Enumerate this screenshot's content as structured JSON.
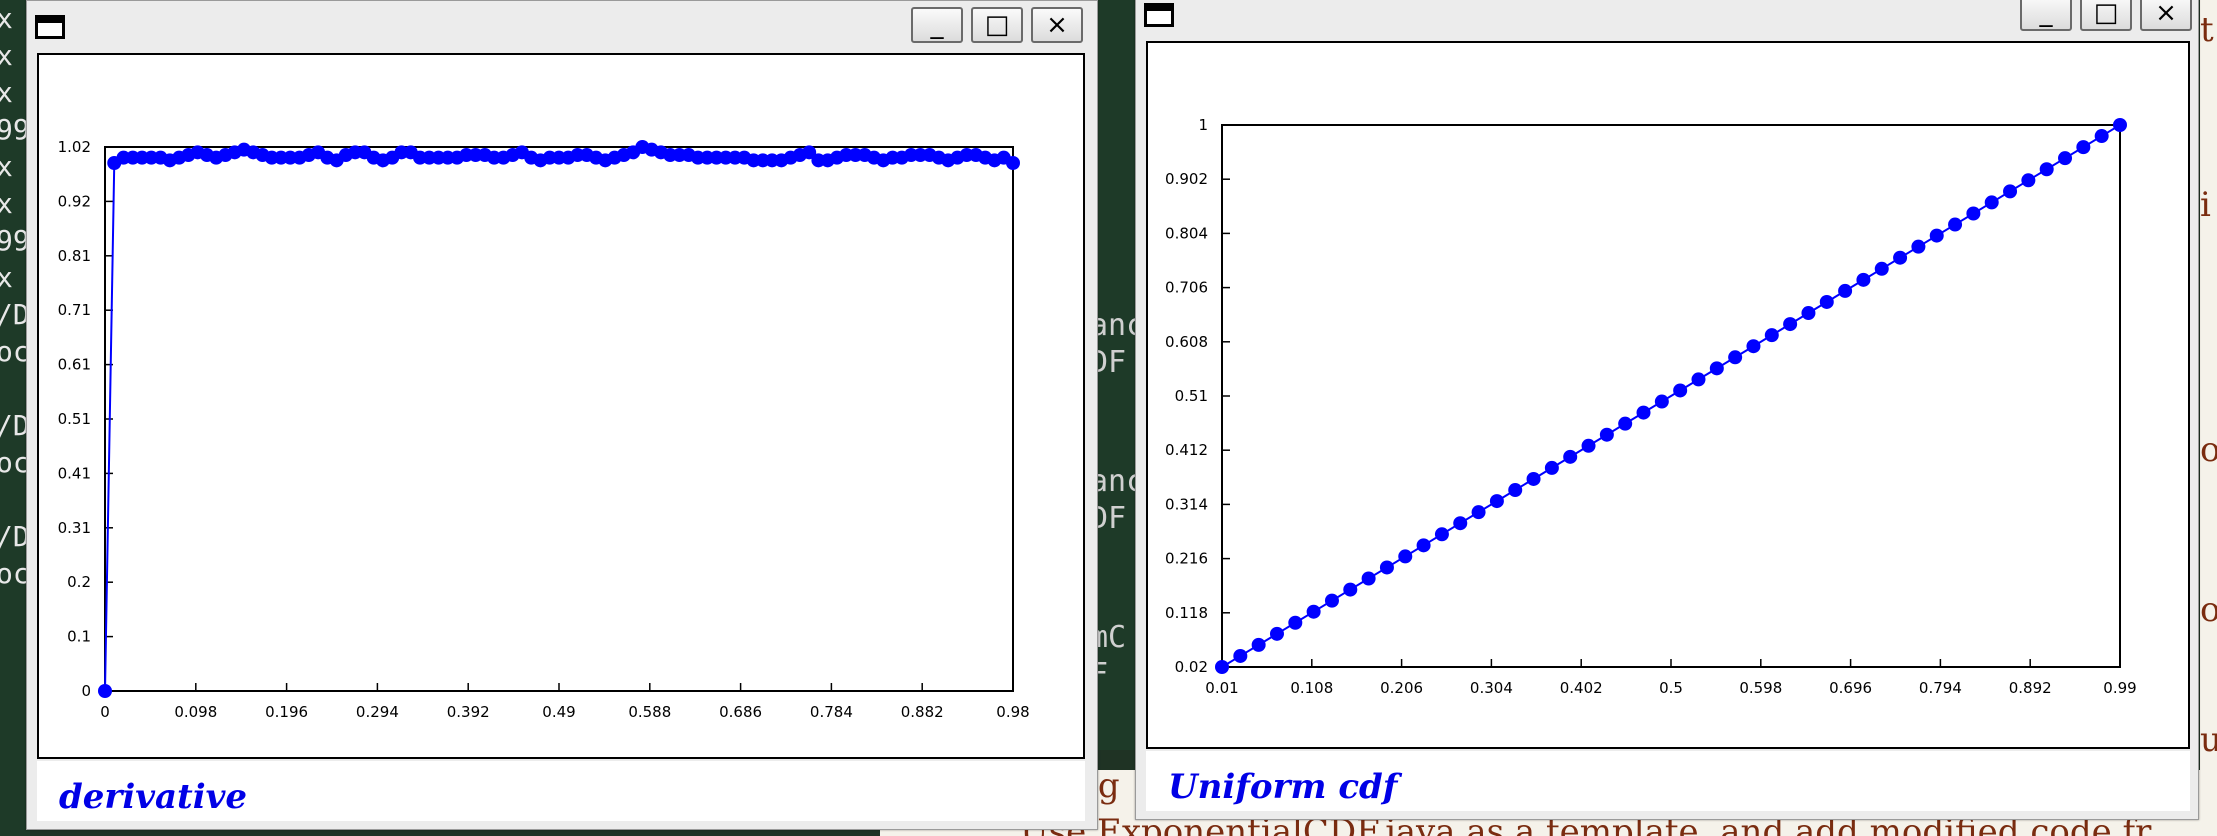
{
  "background_terminal": {
    "left_lines": [
      "x",
      "x",
      "x",
      "99",
      "x",
      "x",
      "99",
      "x",
      "/D",
      "oc",
      "",
      "/D",
      "oc",
      "",
      "/D",
      "oc"
    ],
    "middle_lines": [
      "anc",
      "DF",
      "",
      "",
      "anc",
      "DF",
      "",
      "",
      "mC",
      "F"
    ]
  },
  "background_document": {
    "bottom_line": "Use ExponentialCDF.java as a template, and add modified code fr",
    "bottom_prefix": "ng"
  },
  "windows": [
    {
      "title": "",
      "buttons": [
        "_",
        "□",
        "×"
      ],
      "legend": "derivative",
      "chart_data": {
        "type": "line",
        "title": "",
        "xlabel": "",
        "ylabel": "",
        "xlim": [
          0,
          0.98
        ],
        "ylim": [
          0,
          1.02
        ],
        "x_ticks": [
          "0",
          "0.098",
          "0.196",
          "0.294",
          "0.392",
          "0.49",
          "0.588",
          "0.686",
          "0.784",
          "0.882",
          "0.98"
        ],
        "y_ticks": [
          "0",
          "0.1",
          "0.2",
          "0.31",
          "0.41",
          "0.51",
          "0.61",
          "0.71",
          "0.81",
          "0.92",
          "1.02"
        ],
        "series": [
          {
            "color": "#0000ff",
            "x": [
              0,
              0.01,
              0.02,
              0.03,
              0.04,
              0.05,
              0.06,
              0.07,
              0.08,
              0.09,
              0.1,
              0.11,
              0.12,
              0.13,
              0.14,
              0.15,
              0.16,
              0.17,
              0.18,
              0.19,
              0.2,
              0.21,
              0.22,
              0.23,
              0.24,
              0.25,
              0.26,
              0.27,
              0.28,
              0.29,
              0.3,
              0.31,
              0.32,
              0.33,
              0.34,
              0.35,
              0.36,
              0.37,
              0.38,
              0.39,
              0.4,
              0.41,
              0.42,
              0.43,
              0.44,
              0.45,
              0.46,
              0.47,
              0.48,
              0.49,
              0.5,
              0.51,
              0.52,
              0.53,
              0.54,
              0.55,
              0.56,
              0.57,
              0.58,
              0.59,
              0.6,
              0.61,
              0.62,
              0.63,
              0.64,
              0.65,
              0.66,
              0.67,
              0.68,
              0.69,
              0.7,
              0.71,
              0.72,
              0.73,
              0.74,
              0.75,
              0.76,
              0.77,
              0.78,
              0.79,
              0.8,
              0.81,
              0.82,
              0.83,
              0.84,
              0.85,
              0.86,
              0.87,
              0.88,
              0.89,
              0.9,
              0.91,
              0.92,
              0.93,
              0.94,
              0.95,
              0.96,
              0.97,
              0.98
            ],
            "y": [
              0,
              0.99,
              1.0,
              1.0,
              1.0,
              1.0,
              1.0,
              0.995,
              1.0,
              1.005,
              1.01,
              1.005,
              1.0,
              1.005,
              1.01,
              1.015,
              1.01,
              1.005,
              1.0,
              1.0,
              1.0,
              1.0,
              1.005,
              1.01,
              1.0,
              0.995,
              1.005,
              1.01,
              1.01,
              1.0,
              0.995,
              1.0,
              1.01,
              1.01,
              1.0,
              1.0,
              1.0,
              1.0,
              1.0,
              1.005,
              1.005,
              1.005,
              1.0,
              1.0,
              1.005,
              1.01,
              1.0,
              0.995,
              1.0,
              1.0,
              1.0,
              1.005,
              1.005,
              1.0,
              0.995,
              1.0,
              1.005,
              1.01,
              1.02,
              1.015,
              1.01,
              1.005,
              1.005,
              1.005,
              1.0,
              1.0,
              1.0,
              1.0,
              1.0,
              1.0,
              0.995,
              0.995,
              0.995,
              0.995,
              1.0,
              1.005,
              1.01,
              0.995,
              0.995,
              1.0,
              1.005,
              1.005,
              1.005,
              1.0,
              0.995,
              1.0,
              1.0,
              1.005,
              1.005,
              1.005,
              1.0,
              0.995,
              1.0,
              1.005,
              1.005,
              1.0,
              0.995,
              1.0,
              0.99
            ]
          }
        ]
      }
    },
    {
      "title": "",
      "buttons": [
        "_",
        "□",
        "×"
      ],
      "legend": "Uniform cdf",
      "chart_data": {
        "type": "line",
        "title": "",
        "xlabel": "",
        "ylabel": "",
        "xlim": [
          0.01,
          0.99
        ],
        "ylim": [
          0.02,
          1
        ],
        "x_ticks": [
          "0.01",
          "0.108",
          "0.206",
          "0.304",
          "0.402",
          "0.5",
          "0.598",
          "0.696",
          "0.794",
          "0.892",
          "0.99"
        ],
        "y_ticks": [
          "0.02",
          "0.118",
          "0.216",
          "0.314",
          "0.412",
          "0.51",
          "0.608",
          "0.706",
          "0.804",
          "0.902",
          "1"
        ],
        "series": [
          {
            "color": "#0000ff",
            "x": [
              0.01,
              0.03,
              0.05,
              0.07,
              0.09,
              0.11,
              0.13,
              0.15,
              0.17,
              0.19,
              0.21,
              0.23,
              0.25,
              0.27,
              0.29,
              0.31,
              0.33,
              0.35,
              0.37,
              0.39,
              0.41,
              0.43,
              0.45,
              0.47,
              0.49,
              0.51,
              0.53,
              0.55,
              0.57,
              0.59,
              0.61,
              0.63,
              0.65,
              0.67,
              0.69,
              0.71,
              0.73,
              0.75,
              0.77,
              0.79,
              0.81,
              0.83,
              0.85,
              0.87,
              0.89,
              0.91,
              0.93,
              0.95,
              0.97,
              0.99
            ],
            "y": [
              0.02,
              0.04,
              0.06,
              0.08,
              0.1,
              0.12,
              0.14,
              0.16,
              0.18,
              0.2,
              0.22,
              0.24,
              0.26,
              0.28,
              0.3,
              0.32,
              0.34,
              0.36,
              0.38,
              0.4,
              0.42,
              0.44,
              0.46,
              0.48,
              0.5,
              0.52,
              0.54,
              0.56,
              0.58,
              0.6,
              0.62,
              0.64,
              0.66,
              0.68,
              0.7,
              0.72,
              0.74,
              0.76,
              0.78,
              0.8,
              0.82,
              0.84,
              0.86,
              0.88,
              0.9,
              0.92,
              0.94,
              0.96,
              0.98,
              1.0
            ]
          }
        ]
      }
    }
  ]
}
